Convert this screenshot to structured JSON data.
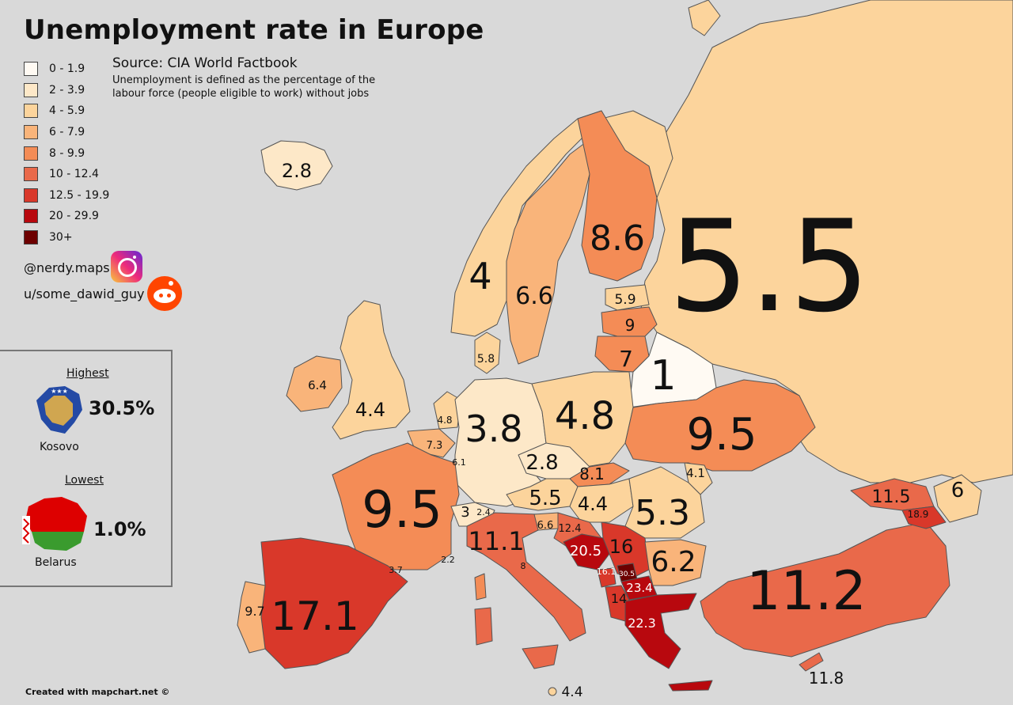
{
  "title": "Unemployment rate in Europe",
  "source": "Source: CIA World Factbook",
  "definition": "Unemployment is defined as the percentage of the labour force (people eligible to work) without jobs",
  "legend": [
    {
      "label": "0 - 1.9",
      "color": "#fffaf3"
    },
    {
      "label": "2 - 3.9",
      "color": "#fde8c8"
    },
    {
      "label": "4 - 5.9",
      "color": "#fcd49c"
    },
    {
      "label": "6 - 7.9",
      "color": "#f9b47a"
    },
    {
      "label": "8 - 9.9",
      "color": "#f48c56"
    },
    {
      "label": "10 - 12.4",
      "color": "#e9694a"
    },
    {
      "label": "12.5 - 19.9",
      "color": "#d9382a"
    },
    {
      "label": "20 - 29.9",
      "color": "#b8080e"
    },
    {
      "label": "30+",
      "color": "#6d0000"
    }
  ],
  "handles": {
    "instagram": "@nerdy.maps",
    "reddit": "u/some_dawid_guy"
  },
  "highlights": {
    "highest_heading": "Highest",
    "highest_value": "30.5%",
    "highest_country": "Kosovo",
    "lowest_heading": "Lowest",
    "lowest_value": "1.0%",
    "lowest_country": "Belarus"
  },
  "credit": "Created with mapchart.net ©",
  "countries": [
    {
      "name": "Iceland",
      "value": "2.8"
    },
    {
      "name": "Norway",
      "value": "4"
    },
    {
      "name": "Sweden",
      "value": "6.6"
    },
    {
      "name": "Finland",
      "value": "8.6"
    },
    {
      "name": "Russia",
      "value": "5.5"
    },
    {
      "name": "Estonia",
      "value": "5.9"
    },
    {
      "name": "Latvia",
      "value": "9"
    },
    {
      "name": "Lithuania",
      "value": "7"
    },
    {
      "name": "Belarus",
      "value": "1"
    },
    {
      "name": "Denmark",
      "value": "5.8"
    },
    {
      "name": "Ireland",
      "value": "6.4"
    },
    {
      "name": "United Kingdom",
      "value": "4.4"
    },
    {
      "name": "Netherlands",
      "value": "4.8"
    },
    {
      "name": "Belgium",
      "value": "7.3"
    },
    {
      "name": "Luxembourg",
      "value": "6.1"
    },
    {
      "name": "Germany",
      "value": "3.8"
    },
    {
      "name": "Poland",
      "value": "4.8"
    },
    {
      "name": "Ukraine",
      "value": "9.5"
    },
    {
      "name": "Czechia",
      "value": "2.8"
    },
    {
      "name": "Slovakia",
      "value": "8.1"
    },
    {
      "name": "Moldova",
      "value": "4.1"
    },
    {
      "name": "France",
      "value": "9.5"
    },
    {
      "name": "Switzerland",
      "value": "3"
    },
    {
      "name": "Liechtenstein",
      "value": "2.4"
    },
    {
      "name": "Austria",
      "value": "5.5"
    },
    {
      "name": "Hungary",
      "value": "4.4"
    },
    {
      "name": "Romania",
      "value": "5.3"
    },
    {
      "name": "Slovenia",
      "value": "6.6"
    },
    {
      "name": "Croatia",
      "value": "12.4"
    },
    {
      "name": "Italy",
      "value": "11.1"
    },
    {
      "name": "San Marino",
      "value": "8"
    },
    {
      "name": "Monaco",
      "value": "2.2"
    },
    {
      "name": "Andorra",
      "value": "3.7"
    },
    {
      "name": "Bosnia and Herzegovina",
      "value": "20.5"
    },
    {
      "name": "Serbia",
      "value": "16"
    },
    {
      "name": "Montenegro",
      "value": "16.1"
    },
    {
      "name": "Kosovo",
      "value": "30.5"
    },
    {
      "name": "North Macedonia",
      "value": "23.4"
    },
    {
      "name": "Albania",
      "value": "14"
    },
    {
      "name": "Bulgaria",
      "value": "6.2"
    },
    {
      "name": "Greece",
      "value": "22.3"
    },
    {
      "name": "Turkey",
      "value": "11.2"
    },
    {
      "name": "Georgia",
      "value": "11.5"
    },
    {
      "name": "Azerbaijan",
      "value": "6"
    },
    {
      "name": "Armenia",
      "value": "18.9"
    },
    {
      "name": "Spain",
      "value": "17.1"
    },
    {
      "name": "Portugal",
      "value": "9.7"
    },
    {
      "name": "Cyprus",
      "value": "11.8"
    },
    {
      "name": "Malta",
      "value": "4.4"
    }
  ]
}
